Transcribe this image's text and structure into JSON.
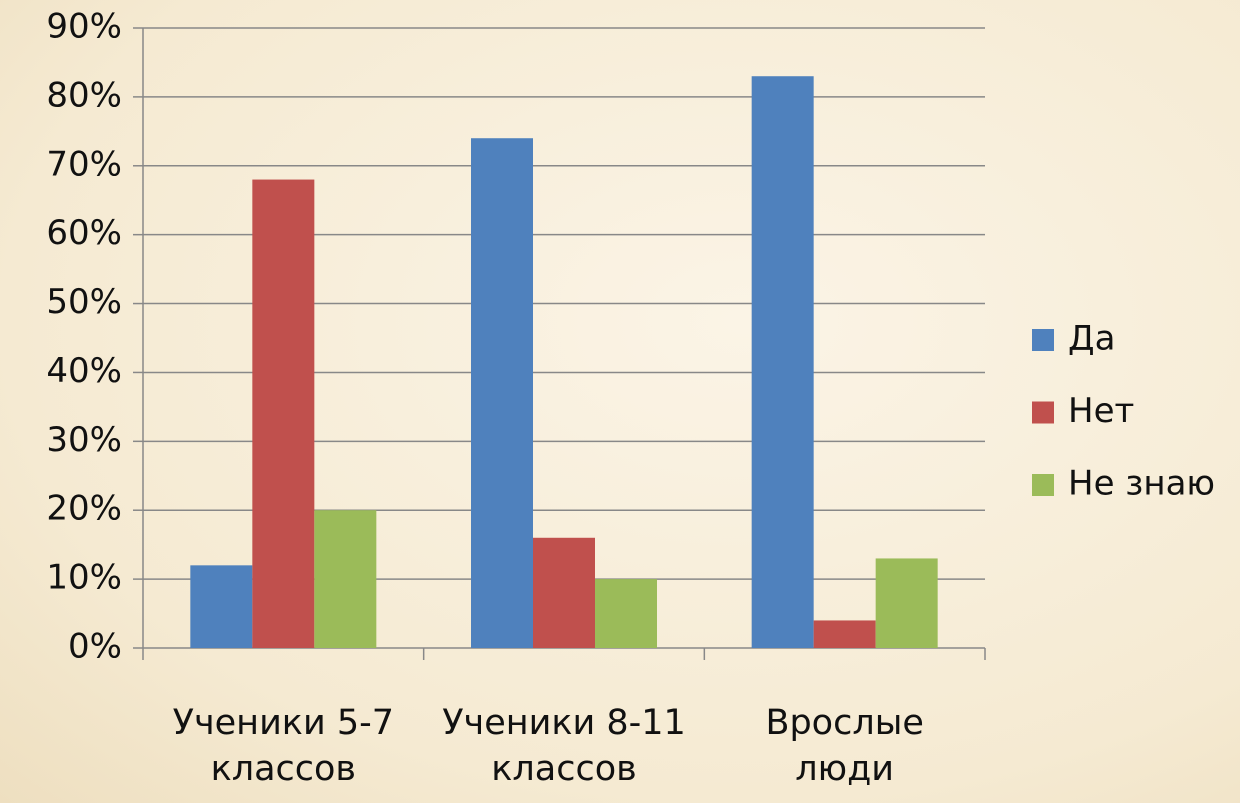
{
  "chart_data": {
    "type": "bar",
    "categories": [
      "Ученики 5-7\nклассов",
      "Ученики 8-11\nклассов",
      "Вpослые\nлюди"
    ],
    "series": [
      {
        "name": "Да",
        "color": "#4f81bd",
        "values": [
          12,
          74,
          83
        ]
      },
      {
        "name": "Нет",
        "color": "#c0504d",
        "values": [
          68,
          16,
          4
        ]
      },
      {
        "name": "Не знаю",
        "color": "#9bbb59",
        "values": [
          20,
          10,
          13
        ]
      }
    ],
    "ylim": [
      0,
      90
    ],
    "yticks": [
      {
        "value": 0,
        "label": "0%"
      },
      {
        "value": 10,
        "label": "10%"
      },
      {
        "value": 20,
        "label": "20%"
      },
      {
        "value": 30,
        "label": "30%"
      },
      {
        "value": 40,
        "label": "40%"
      },
      {
        "value": 50,
        "label": "50%"
      },
      {
        "value": 60,
        "label": "60%"
      },
      {
        "value": 70,
        "label": "70%"
      },
      {
        "value": 80,
        "label": "80%"
      },
      {
        "value": 90,
        "label": "90%"
      }
    ],
    "grid": true,
    "legend": "right"
  }
}
